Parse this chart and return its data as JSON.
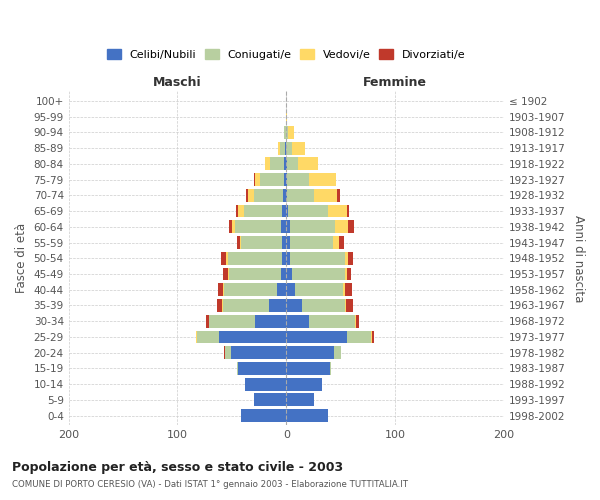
{
  "age_groups": [
    "0-4",
    "5-9",
    "10-14",
    "15-19",
    "20-24",
    "25-29",
    "30-34",
    "35-39",
    "40-44",
    "45-49",
    "50-54",
    "55-59",
    "60-64",
    "65-69",
    "70-74",
    "75-79",
    "80-84",
    "85-89",
    "90-94",
    "95-99",
    "100+"
  ],
  "birth_years": [
    "1998-2002",
    "1993-1997",
    "1988-1992",
    "1983-1987",
    "1978-1982",
    "1973-1977",
    "1968-1972",
    "1963-1967",
    "1958-1962",
    "1953-1957",
    "1948-1952",
    "1943-1947",
    "1938-1942",
    "1933-1937",
    "1928-1932",
    "1923-1927",
    "1918-1922",
    "1913-1917",
    "1908-1912",
    "1903-1907",
    "≤ 1902"
  ],
  "male": {
    "celibi": [
      42,
      30,
      38,
      44,
      51,
      62,
      29,
      16,
      9,
      5,
      4,
      4,
      5,
      4,
      3,
      2,
      2,
      1,
      0,
      0,
      0
    ],
    "coniugati": [
      0,
      0,
      0,
      1,
      5,
      20,
      42,
      42,
      48,
      48,
      50,
      38,
      42,
      35,
      27,
      22,
      13,
      5,
      2,
      0,
      0
    ],
    "vedovi": [
      0,
      0,
      0,
      0,
      0,
      1,
      0,
      1,
      1,
      1,
      1,
      1,
      3,
      5,
      5,
      5,
      5,
      2,
      0,
      0,
      0
    ],
    "divorziati": [
      0,
      0,
      0,
      0,
      1,
      0,
      3,
      5,
      5,
      4,
      5,
      2,
      3,
      2,
      2,
      1,
      0,
      0,
      0,
      0,
      0
    ]
  },
  "female": {
    "nubili": [
      38,
      25,
      33,
      40,
      44,
      56,
      21,
      14,
      8,
      5,
      3,
      3,
      3,
      2,
      1,
      1,
      1,
      0,
      0,
      0,
      0
    ],
    "coniugate": [
      0,
      0,
      0,
      1,
      6,
      22,
      42,
      40,
      44,
      49,
      51,
      40,
      42,
      36,
      24,
      20,
      10,
      5,
      2,
      0,
      0
    ],
    "vedove": [
      0,
      0,
      0,
      0,
      0,
      1,
      1,
      1,
      2,
      2,
      3,
      5,
      12,
      18,
      22,
      25,
      18,
      12,
      5,
      1,
      0
    ],
    "divorziate": [
      0,
      0,
      0,
      0,
      0,
      2,
      3,
      6,
      6,
      3,
      4,
      5,
      5,
      2,
      2,
      0,
      0,
      0,
      0,
      0,
      0
    ]
  },
  "colors": {
    "celibi": "#4472c4",
    "coniugati": "#b8cfa0",
    "vedovi": "#ffd966",
    "divorziati": "#c0392b"
  },
  "title": "Popolazione per età, sesso e stato civile - 2003",
  "subtitle": "COMUNE DI PORTO CERESIO (VA) - Dati ISTAT 1° gennaio 2003 - Elaborazione TUTTITALIA.IT",
  "ylabel_left": "Fasce di età",
  "ylabel_right": "Anni di nascita",
  "xlabel_maschi": "Maschi",
  "xlabel_femmine": "Femmine",
  "legend": [
    "Celibi/Nubili",
    "Coniugati/e",
    "Vedovi/e",
    "Divorziati/e"
  ],
  "xlim": 200,
  "background_color": "#ffffff",
  "grid_color": "#cccccc"
}
